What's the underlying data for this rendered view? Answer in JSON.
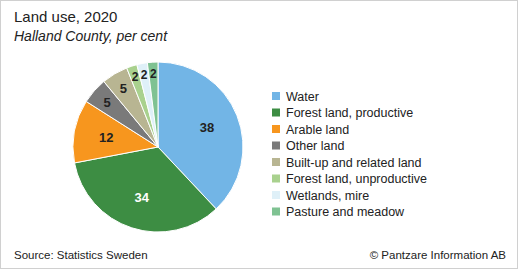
{
  "chart_data": {
    "type": "pie",
    "title": "Land use, 2020",
    "subtitle": "Halland County, per cent",
    "categories": [
      "Water",
      "Forest land, productive",
      "Arable land",
      "Other land",
      "Built-up and related land",
      "Forest land, unproductive",
      "Wetlands, mire",
      "Pasture and meadow"
    ],
    "values": [
      38,
      34,
      12,
      5,
      5,
      2,
      2,
      2
    ],
    "colors": [
      "#72b5e6",
      "#3d8d43",
      "#f7961e",
      "#7a7a7a",
      "#b8b592",
      "#a9d18e",
      "#dff0f8",
      "#7fc292"
    ],
    "data_labels": true,
    "legend": "right",
    "source": "Source: Statistics Sweden",
    "credit": "© Pantzare Information AB"
  }
}
